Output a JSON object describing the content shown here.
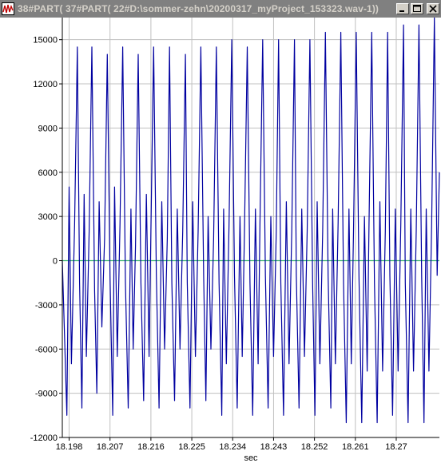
{
  "window": {
    "title": "38#PART( 37#PART( 22#D:\\sommer-zehn\\20200317_myProject_153323.wav-1))",
    "icons": {
      "app": "waveform-app-icon",
      "minimize": "minimize-icon",
      "maximize": "maximize-icon",
      "close": "close-icon"
    }
  },
  "colors": {
    "signal": "#0000a0",
    "zero_line": "#3cb371",
    "grid": "#c0c0c0",
    "titlebar": "#808080"
  },
  "chart_data": {
    "type": "line",
    "xlabel": "sec",
    "ylabel": "",
    "xlim": [
      18.1965,
      18.2795
    ],
    "ylim": [
      -12000,
      16500
    ],
    "grid": true,
    "x_ticks": [
      "18.198",
      "18.207",
      "18.216",
      "18.225",
      "18.234",
      "18.243",
      "18.252",
      "18.261",
      "18.27"
    ],
    "x_tick_values": [
      18.198,
      18.207,
      18.216,
      18.225,
      18.234,
      18.243,
      18.252,
      18.261,
      18.27
    ],
    "y_ticks": [
      "15000",
      "12000",
      "9000",
      "6000",
      "3000",
      "0",
      "-3000",
      "-6000",
      "-9000",
      "-12000"
    ],
    "y_tick_values": [
      15000,
      12000,
      9000,
      6000,
      3000,
      0,
      -3000,
      -6000,
      -9000,
      -12000
    ],
    "series": [
      {
        "name": "",
        "x": [
          18.1965,
          18.1975,
          18.198,
          18.1985,
          18.1992,
          18.1998,
          18.2003,
          18.2008,
          18.2013,
          18.2018,
          18.2024,
          18.203,
          18.2036,
          18.2041,
          18.2046,
          18.2052,
          18.2058,
          18.2064,
          18.207,
          18.2076,
          18.208,
          18.2086,
          18.2092,
          18.2098,
          18.2104,
          18.211,
          18.2116,
          18.2121,
          18.2126,
          18.2132,
          18.2138,
          18.2144,
          18.215,
          18.2156,
          18.216,
          18.2166,
          18.2172,
          18.2178,
          18.2184,
          18.219,
          18.2196,
          18.2201,
          18.2206,
          18.2212,
          18.2218,
          18.2224,
          18.223,
          18.2236,
          18.224,
          18.2246,
          18.2252,
          18.2258,
          18.2264,
          18.227,
          18.2276,
          18.2281,
          18.2286,
          18.2292,
          18.2298,
          18.2304,
          18.231,
          18.2316,
          18.232,
          18.2326,
          18.2332,
          18.2338,
          18.2344,
          18.235,
          18.2356,
          18.2361,
          18.2366,
          18.2372,
          18.2378,
          18.2384,
          18.239,
          18.2396,
          18.24,
          18.2406,
          18.2412,
          18.2418,
          18.2424,
          18.243,
          18.2436,
          18.2441,
          18.2446,
          18.2452,
          18.2458,
          18.2464,
          18.247,
          18.2476,
          18.248,
          18.2486,
          18.2492,
          18.2498,
          18.2504,
          18.251,
          18.2516,
          18.2521,
          18.2526,
          18.2532,
          18.2538,
          18.2544,
          18.255,
          18.2556,
          18.256,
          18.2566,
          18.2572,
          18.2578,
          18.2584,
          18.259,
          18.2596,
          18.2601,
          18.2606,
          18.2612,
          18.2618,
          18.2624,
          18.263,
          18.2636,
          18.264,
          18.2646,
          18.2652,
          18.2658,
          18.2664,
          18.267,
          18.2676,
          18.2681,
          18.2686,
          18.2692,
          18.2698,
          18.2704,
          18.271,
          18.2716,
          18.272,
          18.2726,
          18.2732,
          18.2738,
          18.2744,
          18.275,
          18.2756,
          18.2761,
          18.2766,
          18.2772,
          18.2778,
          18.2784,
          18.279,
          18.2795
        ],
        "y": [
          0,
          -10500,
          5000,
          -7000,
          2500,
          14500,
          -1500,
          -10000,
          4500,
          -6500,
          2000,
          14500,
          -2000,
          -9000,
          4000,
          -4500,
          1500,
          14000,
          -1000,
          -10500,
          5000,
          -6500,
          2500,
          14500,
          -1500,
          -10000,
          3500,
          -6000,
          1000,
          14000,
          -1500,
          -9500,
          4500,
          -6500,
          2000,
          14500,
          -1000,
          -10000,
          4000,
          -6000,
          1500,
          14500,
          -1500,
          -9500,
          3500,
          -6000,
          2000,
          14000,
          -1500,
          -10000,
          4000,
          -6500,
          2000,
          14500,
          -1000,
          -9500,
          3000,
          -6000,
          1500,
          14500,
          -1500,
          -10500,
          3500,
          -7000,
          2500,
          15000,
          -1000,
          -10000,
          3000,
          -6500,
          2000,
          14500,
          -1500,
          -10500,
          3500,
          -7000,
          2500,
          15000,
          -1000,
          -10000,
          3000,
          -6500,
          2000,
          15000,
          -1500,
          -10500,
          4000,
          -7000,
          2000,
          15000,
          -1000,
          -10000,
          3500,
          -6500,
          2000,
          15000,
          -1500,
          -10500,
          4000,
          -7000,
          2000,
          15500,
          -1000,
          -10000,
          3500,
          -7000,
          2500,
          15500,
          -1500,
          -11000,
          3500,
          -7000,
          2000,
          15500,
          -1000,
          -11000,
          3000,
          -7500,
          2500,
          15500,
          -1500,
          -11000,
          4000,
          -7500,
          2000,
          15500,
          -1000,
          -10500,
          3500,
          -7500,
          2500,
          16000,
          -1500,
          -11000,
          3500,
          -7500,
          2000,
          16000,
          -1000,
          -11000,
          3500,
          -7500,
          2500,
          16500,
          -1000,
          6000
        ]
      }
    ]
  }
}
